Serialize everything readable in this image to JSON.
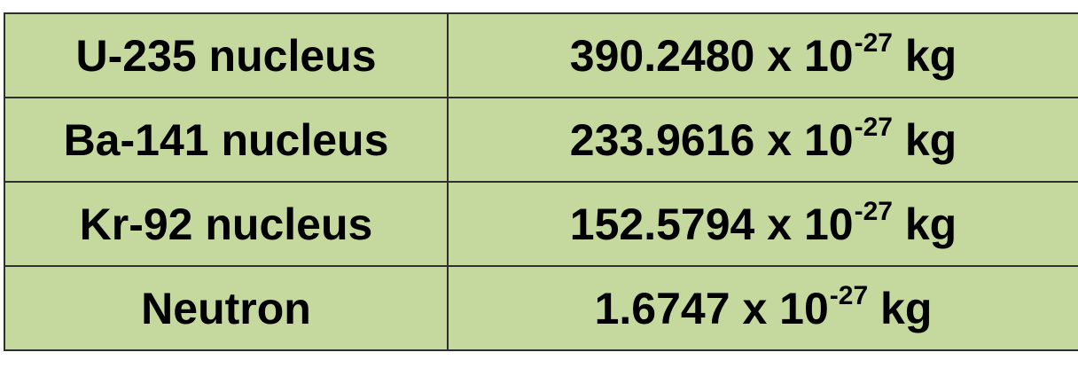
{
  "table": {
    "background_color": "#c5d99f",
    "border_color": "#2f2f2f",
    "rows": [
      {
        "particle": "U-235 nucleus",
        "mantissa": "390.2480",
        "times": "x",
        "base": "10",
        "exponent": "-27",
        "unit": "kg"
      },
      {
        "particle": "Ba-141 nucleus",
        "mantissa": "233.9616",
        "times": "x",
        "base": "10",
        "exponent": "-27",
        "unit": "kg"
      },
      {
        "particle": "Kr-92 nucleus",
        "mantissa": "152.5794",
        "times": "x",
        "base": "10",
        "exponent": "-27",
        "unit": "kg"
      },
      {
        "particle": "Neutron",
        "mantissa": "1.6747",
        "times": "x",
        "base": "10",
        "exponent": "-27",
        "unit": "kg"
      }
    ]
  }
}
